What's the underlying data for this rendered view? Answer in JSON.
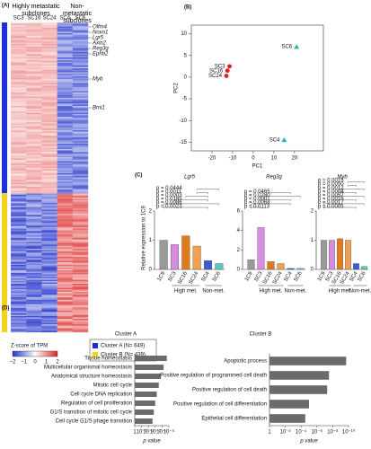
{
  "heatmap": {
    "panel": "(A)",
    "group_high": "Highly metastatic subclones",
    "group_non": "Non-metastatic subclones",
    "columns": [
      "SC3",
      "SC16",
      "SC24",
      "SC4",
      "SC6"
    ],
    "genes": [
      "Olfm4",
      "Noxo1",
      "Lgr5",
      "Axin2",
      "Reg3g",
      "Ephb2",
      "Myb",
      "Bmi1"
    ],
    "legend_title": "Z-score of TPM",
    "legend_ticks": [
      "−2",
      "−1",
      "0",
      "1",
      "2"
    ],
    "clusters": [
      "Cluster A (N= 649)",
      "Cluster B (N= 439)"
    ]
  },
  "chart_data": [
    {
      "type": "scatter",
      "panel": "(B)",
      "xlabel": "PC1",
      "ylabel": "PC2",
      "x": [
        -11.5,
        -12.5,
        -13,
        21,
        15
      ],
      "values": [
        2.5,
        1.5,
        0.3,
        7,
        -14.5
      ],
      "labels": [
        "SC3",
        "SC16",
        "SC24",
        "SC6",
        "SC4"
      ],
      "colors": [
        "#e0201e",
        "#e0201e",
        "#e0201e",
        "#27b5ad",
        "#27b5ad"
      ],
      "xlim": [
        -30,
        34
      ],
      "ylim": [
        -17,
        12
      ],
      "xticks": [
        -20,
        -10,
        0,
        10,
        20
      ],
      "yticks": [
        -15,
        -10,
        -5,
        0,
        5,
        10
      ]
    },
    {
      "type": "bar",
      "panel": "(C)",
      "title": "Lgr5",
      "ylabel": "Relative expression to 1C9",
      "categories": [
        "1C9",
        "SC3",
        "SC16",
        "SC24",
        "SC4",
        "SC6"
      ],
      "values": [
        1,
        0.85,
        1.15,
        0.8,
        0.3,
        0.2
      ],
      "colors": [
        "#9a9a9a",
        "#d98be0",
        "#e07a1a",
        "#f0a050",
        "#3b5bd6",
        "#5bc8c0"
      ],
      "ylim": [
        0,
        2
      ],
      "yticks": [
        0,
        1,
        2
      ],
      "annotations": [
        "p = 0.0023",
        "p = 0.0086",
        "p = 0.0185",
        "p = 0.0003",
        "p = 0.0011",
        "p = 0.0444"
      ],
      "groups": [
        "High met.",
        "Non-met."
      ]
    },
    {
      "type": "bar",
      "title": "Reg3g",
      "categories": [
        "1C9",
        "SC3",
        "SC16",
        "SC24",
        "SC4",
        "SC6"
      ],
      "values": [
        1,
        4.3,
        0.8,
        0.6,
        0.1,
        0.1
      ],
      "colors": [
        "#9a9a9a",
        "#d98be0",
        "#e07a1a",
        "#f0a050",
        "#3b5bd6",
        "#5bc8c0"
      ],
      "ylim": [
        0,
        6
      ],
      "yticks": [
        0,
        2,
        4,
        6
      ],
      "annotations": [
        "p = 0.0113",
        "p = 0.0068",
        "p < 0.0001",
        "p = 0.0280",
        "p = 0.0465"
      ],
      "groups": [
        "High met.",
        "Non-met."
      ]
    },
    {
      "type": "bar",
      "title": "Myb",
      "categories": [
        "1C9",
        "SC3",
        "SC16",
        "SC24",
        "SC4",
        "SC6"
      ],
      "values": [
        1,
        1,
        1.05,
        1,
        0.2,
        0.1
      ],
      "colors": [
        "#9a9a9a",
        "#d98be0",
        "#e07a1a",
        "#f0a050",
        "#3b5bd6",
        "#5bc8c0"
      ],
      "ylim": [
        0,
        2
      ],
      "yticks": [
        0,
        1,
        2
      ],
      "annotations": [
        "p = 0.0005",
        "p = 0.0017",
        "p = 0.0016",
        "p = 0.0052",
        "p = 0.0004",
        "p = 0.0012",
        "p = 0.0050",
        "p = 0.0015"
      ],
      "groups": [
        "High met.",
        "Non-met."
      ]
    },
    {
      "type": "hbar",
      "panel": "(D)",
      "title": "Cluster A",
      "xlabel": "p value",
      "categories": [
        "Tissue homeostasis",
        "Multicellular organismal homeostasis",
        "Anatomical structure homeostasis",
        "Mitotic cell cycle",
        "Cell cycle DNA replication",
        "Regulation of cell proliferation",
        "G1/S transition of mitotic cell cycle",
        "Cell cycle G1/S phage transition"
      ],
      "values": [
        2e-05,
        6e-05,
        0.00015,
        0.0003,
        0.0006,
        0.001,
        0.0016,
        0.0025
      ],
      "color": "#6b6b6b",
      "log_x": true,
      "xlim": [
        1,
        1e-05
      ],
      "xticks": [
        1,
        {
          "value": 0.1,
          "label": "10⁻¹"
        },
        {
          "value": 0.01,
          "label": "10⁻²"
        },
        {
          "value": 0.001,
          "label": "10⁻³"
        },
        {
          "value": 0.0001,
          "label": "10⁻⁴"
        },
        {
          "value": 1e-05,
          "label": "10⁻⁵"
        }
      ]
    },
    {
      "type": "hbar",
      "title": "Cluster B",
      "xlabel": "p value",
      "categories": [
        "Apoptotic process",
        "Positive regulation of programmed cell death",
        "Positive regulation of cell death",
        "Positive regulation of cell differentiation",
        "Epithelial cell differentiation"
      ],
      "values": [
        2e-10,
        3e-08,
        5e-08,
        1e-05,
        3e-05
      ],
      "color": "#6b6b6b",
      "log_x": true,
      "xlim": [
        1,
        1e-10
      ],
      "xticks": [
        1,
        {
          "value": 0.01,
          "label": "10⁻²"
        },
        {
          "value": 0.0001,
          "label": "10⁻⁴"
        },
        {
          "value": 1e-06,
          "label": "10⁻⁶"
        },
        {
          "value": 1e-08,
          "label": "10⁻⁸"
        },
        {
          "value": 1e-10,
          "label": "10⁻¹⁰"
        }
      ]
    }
  ]
}
